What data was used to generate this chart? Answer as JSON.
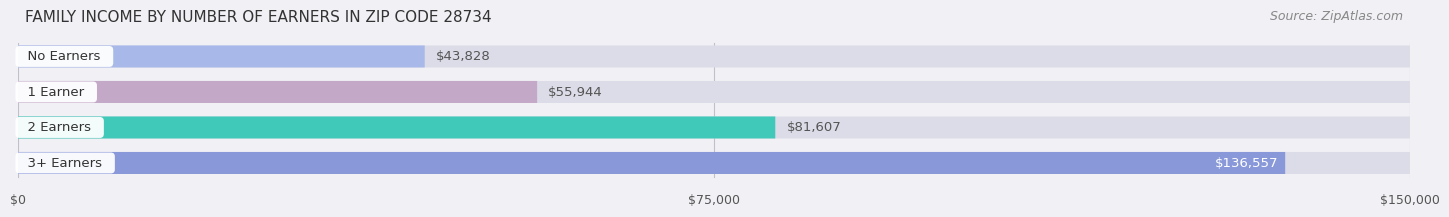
{
  "title": "FAMILY INCOME BY NUMBER OF EARNERS IN ZIP CODE 28734",
  "source": "Source: ZipAtlas.com",
  "categories": [
    "No Earners",
    "1 Earner",
    "2 Earners",
    "3+ Earners"
  ],
  "values": [
    43828,
    55944,
    81607,
    136557
  ],
  "value_labels": [
    "$43,828",
    "$55,944",
    "$81,607",
    "$136,557"
  ],
  "bar_colors": [
    "#a8b8e8",
    "#c4a8c8",
    "#40c8b8",
    "#8898d8"
  ],
  "bar_bg_color": "#e8e8f0",
  "xlim": [
    0,
    150000
  ],
  "xticks": [
    0,
    75000,
    150000
  ],
  "xtick_labels": [
    "$0",
    "$75,000",
    "$150,000"
  ],
  "bg_color": "#f0f0f5",
  "title_fontsize": 11,
  "source_fontsize": 9,
  "label_fontsize": 9.5,
  "value_fontsize": 9.5,
  "bar_height": 0.62,
  "bar_label_color_inside": "#ffffff",
  "bar_label_color_outside": "#555555"
}
